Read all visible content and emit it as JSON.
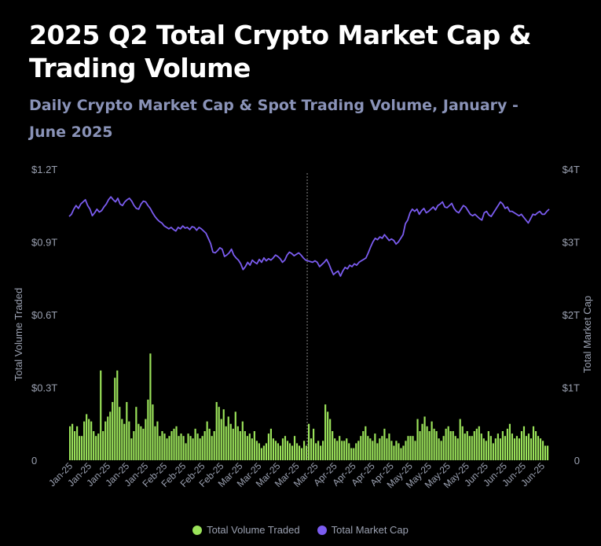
{
  "header": {
    "title": "2025 Q2 Total Crypto Market Cap & Trading Volume",
    "subtitle": "Daily Crypto Market Cap & Spot Trading Volume, January - June 2025"
  },
  "colors": {
    "volume": "#9be35a",
    "market_cap": "#7b5cf0",
    "axis_text": "#9aa0b0",
    "background": "#000000"
  },
  "chart_data": {
    "type": "bar",
    "title": "2025 Q2 Total Crypto Market Cap & Trading Volume",
    "subtitle": "Daily Crypto Market Cap & Spot Trading Volume, January - June 2025",
    "ylabel_left": "Total Volume Traded",
    "ylabel_right": "Total Market Cap",
    "left_ticks": [
      "0",
      "$0.3T",
      "$0.6T",
      "$0.9T",
      "$1.2T"
    ],
    "right_ticks": [
      "0",
      "$1T",
      "$2T",
      "$3T",
      "$4T"
    ],
    "ylim_left": [
      0,
      1.2
    ],
    "ylim_right": [
      0,
      4
    ],
    "x_ticks": [
      "Jan-25",
      "Jan-25",
      "Jan-25",
      "Jan-25",
      "Jan-25",
      "Feb-25",
      "Feb-25",
      "Feb-25",
      "Feb-25",
      "Mar-25",
      "Mar-25",
      "Mar-25",
      "Mar-25",
      "Mar-25",
      "Apr-25",
      "Apr-25",
      "Apr-25",
      "Apr-25",
      "May-25",
      "May-25",
      "May-25",
      "May-25",
      "Jun-25",
      "Jun-25",
      "Jun-25",
      "Jun-25"
    ],
    "divider_label": "",
    "legend_position": "bottom",
    "grid": false,
    "series": [
      {
        "name": "Total Volume Traded",
        "kind": "bar",
        "axis": "left",
        "unit": "trillion USD",
        "values": [
          0.14,
          0.15,
          0.12,
          0.14,
          0.1,
          0.1,
          0.16,
          0.19,
          0.17,
          0.16,
          0.12,
          0.1,
          0.11,
          0.37,
          0.12,
          0.16,
          0.18,
          0.2,
          0.24,
          0.34,
          0.37,
          0.22,
          0.17,
          0.15,
          0.24,
          0.16,
          0.09,
          0.12,
          0.22,
          0.15,
          0.14,
          0.13,
          0.17,
          0.25,
          0.44,
          0.23,
          0.14,
          0.16,
          0.1,
          0.12,
          0.11,
          0.09,
          0.1,
          0.12,
          0.13,
          0.14,
          0.1,
          0.11,
          0.1,
          0.07,
          0.11,
          0.1,
          0.09,
          0.13,
          0.11,
          0.09,
          0.1,
          0.12,
          0.16,
          0.13,
          0.1,
          0.12,
          0.24,
          0.22,
          0.17,
          0.21,
          0.14,
          0.18,
          0.15,
          0.13,
          0.2,
          0.14,
          0.12,
          0.16,
          0.12,
          0.1,
          0.11,
          0.09,
          0.12,
          0.08,
          0.07,
          0.05,
          0.06,
          0.07,
          0.11,
          0.13,
          0.09,
          0.08,
          0.07,
          0.06,
          0.09,
          0.1,
          0.08,
          0.07,
          0.06,
          0.1,
          0.07,
          0.06,
          0.05,
          0.08,
          0.06,
          0.15,
          0.09,
          0.13,
          0.07,
          0.08,
          0.06,
          0.08,
          0.23,
          0.2,
          0.17,
          0.12,
          0.09,
          0.08,
          0.1,
          0.08,
          0.08,
          0.09,
          0.07,
          0.05,
          0.05,
          0.07,
          0.08,
          0.1,
          0.12,
          0.14,
          0.1,
          0.09,
          0.08,
          0.11,
          0.07,
          0.09,
          0.1,
          0.13,
          0.09,
          0.11,
          0.08,
          0.06,
          0.08,
          0.07,
          0.05,
          0.06,
          0.08,
          0.1,
          0.1,
          0.1,
          0.08,
          0.17,
          0.12,
          0.15,
          0.18,
          0.14,
          0.12,
          0.16,
          0.13,
          0.12,
          0.09,
          0.08,
          0.1,
          0.13,
          0.14,
          0.12,
          0.12,
          0.1,
          0.09,
          0.17,
          0.14,
          0.11,
          0.12,
          0.1,
          0.1,
          0.12,
          0.13,
          0.14,
          0.11,
          0.09,
          0.08,
          0.12,
          0.1,
          0.07,
          0.09,
          0.11,
          0.09,
          0.12,
          0.1,
          0.13,
          0.15,
          0.11,
          0.09,
          0.1,
          0.09,
          0.12,
          0.14,
          0.1,
          0.11,
          0.09,
          0.14,
          0.12,
          0.1,
          0.09,
          0.08,
          0.06,
          0.06
        ]
      },
      {
        "name": "Total Market Cap",
        "kind": "line",
        "axis": "right",
        "unit": "trillion USD",
        "values": [
          3.35,
          3.38,
          3.45,
          3.5,
          3.46,
          3.52,
          3.55,
          3.58,
          3.5,
          3.45,
          3.36,
          3.4,
          3.45,
          3.41,
          3.43,
          3.48,
          3.52,
          3.58,
          3.62,
          3.58,
          3.55,
          3.6,
          3.52,
          3.5,
          3.55,
          3.58,
          3.6,
          3.56,
          3.5,
          3.46,
          3.45,
          3.52,
          3.56,
          3.55,
          3.5,
          3.46,
          3.4,
          3.35,
          3.31,
          3.28,
          3.26,
          3.22,
          3.2,
          3.18,
          3.2,
          3.17,
          3.15,
          3.2,
          3.18,
          3.22,
          3.19,
          3.2,
          3.17,
          3.21,
          3.2,
          3.16,
          3.2,
          3.18,
          3.15,
          3.12,
          3.05,
          2.98,
          2.86,
          2.85,
          2.88,
          2.92,
          2.9,
          2.8,
          2.82,
          2.85,
          2.9,
          2.82,
          2.78,
          2.75,
          2.7,
          2.62,
          2.66,
          2.72,
          2.68,
          2.75,
          2.72,
          2.7,
          2.76,
          2.72,
          2.78,
          2.74,
          2.77,
          2.75,
          2.78,
          2.82,
          2.8,
          2.77,
          2.72,
          2.75,
          2.82,
          2.86,
          2.84,
          2.81,
          2.83,
          2.85,
          2.82,
          2.78,
          2.75,
          2.74,
          2.73,
          2.72,
          2.74,
          2.72,
          2.66,
          2.69,
          2.72,
          2.76,
          2.7,
          2.62,
          2.55,
          2.58,
          2.6,
          2.53,
          2.6,
          2.65,
          2.63,
          2.68,
          2.66,
          2.7,
          2.68,
          2.72,
          2.74,
          2.76,
          2.78,
          2.85,
          2.93,
          3.0,
          3.05,
          3.03,
          3.07,
          3.05,
          3.1,
          3.06,
          3.02,
          3.04,
          3.02,
          2.97,
          3.0,
          3.05,
          3.1,
          3.25,
          3.3,
          3.4,
          3.45,
          3.42,
          3.45,
          3.38,
          3.43,
          3.46,
          3.4,
          3.42,
          3.45,
          3.48,
          3.44,
          3.5,
          3.52,
          3.55,
          3.48,
          3.47,
          3.5,
          3.53,
          3.46,
          3.42,
          3.4,
          3.45,
          3.5,
          3.48,
          3.43,
          3.38,
          3.36,
          3.38,
          3.35,
          3.32,
          3.3,
          3.4,
          3.42,
          3.37,
          3.35,
          3.4,
          3.45,
          3.5,
          3.55,
          3.52,
          3.46,
          3.48,
          3.42,
          3.42,
          3.4,
          3.38,
          3.36,
          3.38,
          3.34,
          3.3,
          3.26,
          3.32,
          3.38,
          3.37,
          3.4,
          3.42,
          3.38,
          3.38,
          3.42,
          3.45
        ]
      }
    ]
  }
}
